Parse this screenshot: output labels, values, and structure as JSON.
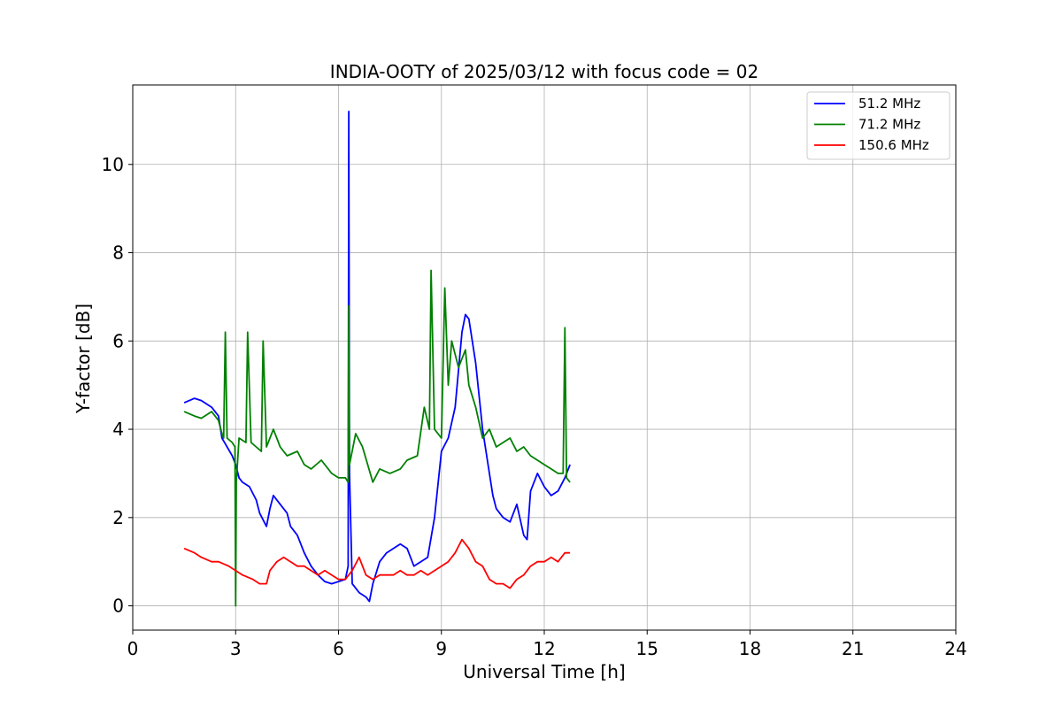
{
  "chart_data": {
    "type": "line",
    "title": "INDIA-OOTY of 2025/03/12 with focus code = 02",
    "xlabel": "Universal Time [h]",
    "ylabel": "Y-factor [dB]",
    "xlim": [
      0,
      24
    ],
    "ylim": [
      -0.55,
      11.8
    ],
    "xticks": [
      0,
      3,
      6,
      9,
      12,
      15,
      18,
      21,
      24
    ],
    "yticks": [
      0,
      2,
      4,
      6,
      8,
      10
    ],
    "xtick_labels": [
      "0",
      "3",
      "6",
      "9",
      "12",
      "15",
      "18",
      "21",
      "24"
    ],
    "ytick_labels": [
      "0",
      "2",
      "4",
      "6",
      "8",
      "10"
    ],
    "grid": true,
    "legend_position": "top-right",
    "series": [
      {
        "name": " 51.2 MHz",
        "color": "#0000ff",
        "x": [
          1.5,
          1.8,
          2.0,
          2.3,
          2.5,
          2.6,
          2.75,
          2.9,
          3.0,
          3.1,
          3.2,
          3.4,
          3.6,
          3.7,
          3.9,
          4.0,
          4.1,
          4.3,
          4.5,
          4.6,
          4.8,
          5.0,
          5.2,
          5.4,
          5.6,
          5.8,
          6.0,
          6.2,
          6.28,
          6.3,
          6.32,
          6.4,
          6.5,
          6.6,
          6.8,
          6.9,
          7.0,
          7.2,
          7.4,
          7.6,
          7.8,
          8.0,
          8.2,
          8.4,
          8.6,
          8.8,
          9.0,
          9.2,
          9.4,
          9.6,
          9.7,
          9.8,
          10.0,
          10.2,
          10.4,
          10.5,
          10.6,
          10.8,
          11.0,
          11.2,
          11.4,
          11.5,
          11.6,
          11.8,
          12.0,
          12.2,
          12.4,
          12.6,
          12.75
        ],
        "y": [
          4.6,
          4.7,
          4.65,
          4.5,
          4.3,
          3.8,
          3.6,
          3.4,
          3.2,
          2.9,
          2.8,
          2.7,
          2.4,
          2.1,
          1.8,
          2.2,
          2.5,
          2.3,
          2.1,
          1.8,
          1.6,
          1.2,
          0.9,
          0.7,
          0.55,
          0.5,
          0.55,
          0.6,
          0.9,
          11.2,
          3.0,
          0.5,
          0.4,
          0.3,
          0.2,
          0.1,
          0.5,
          1.0,
          1.2,
          1.3,
          1.4,
          1.3,
          0.9,
          1.0,
          1.1,
          2.0,
          3.5,
          3.8,
          4.5,
          6.2,
          6.6,
          6.5,
          5.5,
          4.0,
          3.0,
          2.5,
          2.2,
          2.0,
          1.9,
          2.3,
          1.6,
          1.5,
          2.6,
          3.0,
          2.7,
          2.5,
          2.6,
          2.9,
          3.2
        ]
      },
      {
        "name": " 71.2 MHz",
        "color": "#008000",
        "x": [
          1.5,
          1.8,
          2.0,
          2.3,
          2.5,
          2.6,
          2.65,
          2.7,
          2.75,
          2.9,
          2.98,
          3.0,
          3.02,
          3.1,
          3.3,
          3.35,
          3.45,
          3.6,
          3.75,
          3.8,
          3.9,
          4.1,
          4.3,
          4.5,
          4.8,
          5.0,
          5.2,
          5.5,
          5.8,
          6.0,
          6.2,
          6.28,
          6.3,
          6.32,
          6.5,
          6.7,
          7.0,
          7.2,
          7.5,
          7.8,
          8.0,
          8.3,
          8.5,
          8.65,
          8.7,
          8.8,
          9.0,
          9.1,
          9.2,
          9.3,
          9.5,
          9.7,
          9.8,
          10.0,
          10.2,
          10.4,
          10.6,
          10.8,
          11.0,
          11.2,
          11.4,
          11.6,
          11.8,
          12.0,
          12.2,
          12.4,
          12.55,
          12.6,
          12.65,
          12.75
        ],
        "y": [
          4.4,
          4.3,
          4.25,
          4.4,
          4.2,
          3.9,
          3.8,
          6.2,
          3.8,
          3.7,
          3.6,
          0.0,
          2.8,
          3.8,
          3.7,
          6.2,
          3.7,
          3.6,
          3.5,
          6.0,
          3.6,
          4.0,
          3.6,
          3.4,
          3.5,
          3.2,
          3.1,
          3.3,
          3.0,
          2.9,
          2.9,
          2.8,
          6.8,
          3.2,
          3.9,
          3.6,
          2.8,
          3.1,
          3.0,
          3.1,
          3.3,
          3.4,
          4.5,
          4.0,
          7.6,
          4.0,
          3.8,
          7.2,
          5.0,
          6.0,
          5.4,
          5.8,
          5.0,
          4.5,
          3.8,
          4.0,
          3.6,
          3.7,
          3.8,
          3.5,
          3.6,
          3.4,
          3.3,
          3.2,
          3.1,
          3.0,
          3.0,
          6.3,
          2.9,
          2.8
        ]
      },
      {
        "name": " 150.6 MHz",
        "color": "#ff0000",
        "x": [
          1.5,
          1.8,
          2.0,
          2.3,
          2.5,
          2.8,
          3.0,
          3.2,
          3.5,
          3.7,
          3.9,
          4.0,
          4.2,
          4.4,
          4.6,
          4.8,
          5.0,
          5.2,
          5.4,
          5.6,
          5.8,
          6.0,
          6.2,
          6.4,
          6.6,
          6.8,
          7.0,
          7.2,
          7.4,
          7.6,
          7.8,
          8.0,
          8.2,
          8.4,
          8.6,
          8.8,
          9.0,
          9.2,
          9.4,
          9.6,
          9.8,
          10.0,
          10.2,
          10.4,
          10.6,
          10.8,
          11.0,
          11.2,
          11.4,
          11.6,
          11.8,
          12.0,
          12.2,
          12.4,
          12.6,
          12.75
        ],
        "y": [
          1.3,
          1.2,
          1.1,
          1.0,
          1.0,
          0.9,
          0.8,
          0.7,
          0.6,
          0.5,
          0.5,
          0.8,
          1.0,
          1.1,
          1.0,
          0.9,
          0.9,
          0.8,
          0.7,
          0.8,
          0.7,
          0.6,
          0.6,
          0.8,
          1.1,
          0.7,
          0.6,
          0.7,
          0.7,
          0.7,
          0.8,
          0.7,
          0.7,
          0.8,
          0.7,
          0.8,
          0.9,
          1.0,
          1.2,
          1.5,
          1.3,
          1.0,
          0.9,
          0.6,
          0.5,
          0.5,
          0.4,
          0.6,
          0.7,
          0.9,
          1.0,
          1.0,
          1.1,
          1.0,
          1.2,
          1.2
        ]
      }
    ]
  }
}
